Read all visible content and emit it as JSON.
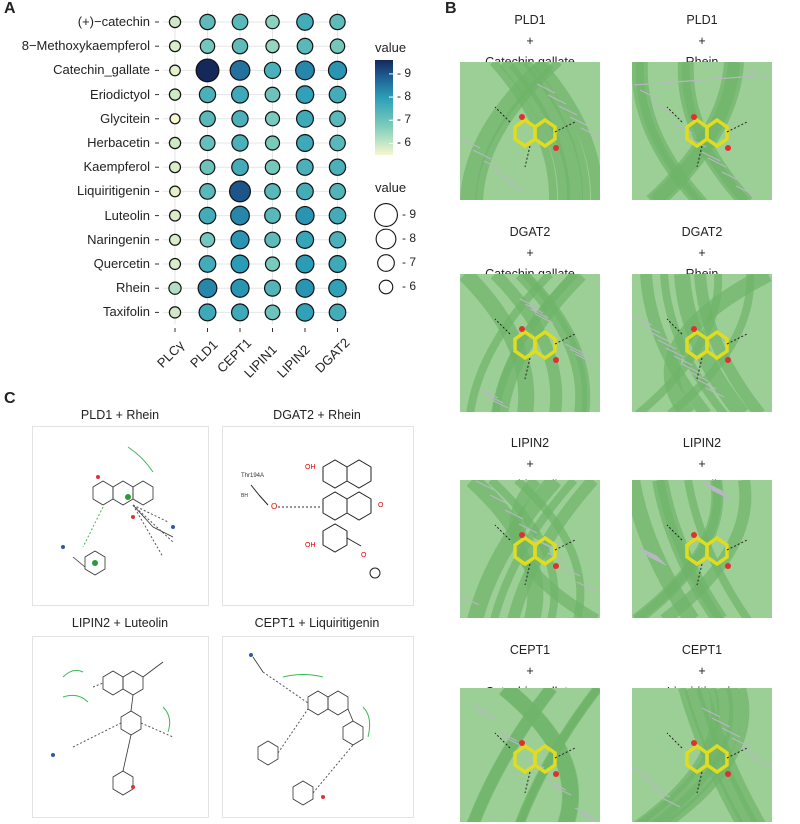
{
  "panels": {
    "a": "A",
    "b": "B",
    "c": "C"
  },
  "chart_data": {
    "type": "scatter",
    "subtype": "dot-matrix",
    "compounds": [
      "(+)−catechin",
      "8−Methoxykaempferol",
      "Catechin_gallate",
      "Eriodictyol",
      "Glycitein",
      "Herbacetin",
      "Kaempferol",
      "Liquiritigenin",
      "Luteolin",
      "Naringenin",
      "Quercetin",
      "Rhein",
      "Taxifolin"
    ],
    "targets": [
      "PLCγ",
      "PLD1",
      "CEPT1",
      "LIPIN1",
      "LIPIN2",
      "DGAT2"
    ],
    "values": [
      [
        5.9,
        7.2,
        7.3,
        6.6,
        7.6,
        7.2
      ],
      [
        5.8,
        6.9,
        7.2,
        6.5,
        7.3,
        6.9
      ],
      [
        5.7,
        9.6,
        8.6,
        7.5,
        8.3,
        8.1
      ],
      [
        5.9,
        7.5,
        7.7,
        7.0,
        7.9,
        7.6
      ],
      [
        5.5,
        7.3,
        7.5,
        6.8,
        7.7,
        7.3
      ],
      [
        5.9,
        7.1,
        7.5,
        6.8,
        7.7,
        7.3
      ],
      [
        5.8,
        7.0,
        7.6,
        6.9,
        7.5,
        7.5
      ],
      [
        5.7,
        7.3,
        9.0,
        7.3,
        7.6,
        7.4
      ],
      [
        5.8,
        7.6,
        8.3,
        7.3,
        8.1,
        7.6
      ],
      [
        5.8,
        6.9,
        8.1,
        7.2,
        7.8,
        7.5
      ],
      [
        5.8,
        7.6,
        8.0,
        6.8,
        8.0,
        7.7
      ],
      [
        6.2,
        8.3,
        8.1,
        7.4,
        8.1,
        7.9
      ],
      [
        5.9,
        7.7,
        7.7,
        7.0,
        7.9,
        7.6
      ]
    ],
    "color_legend": {
      "title": "value",
      "ticks": [
        "9",
        "8",
        "7",
        "6"
      ],
      "tick_values": [
        9,
        8,
        7,
        6
      ],
      "range": [
        5.5,
        9.6
      ]
    },
    "size_legend": {
      "title": "value",
      "ticks": [
        "9",
        "8",
        "7",
        "6"
      ],
      "tick_values": [
        9,
        8,
        7,
        6
      ]
    }
  },
  "docking_panels": [
    {
      "row": 0,
      "col": 0,
      "lines": [
        "PLD1",
        "+",
        "Catechin gallate"
      ]
    },
    {
      "row": 0,
      "col": 1,
      "lines": [
        "PLD1",
        "+",
        "Rhein"
      ]
    },
    {
      "row": 1,
      "col": 0,
      "lines": [
        "DGAT2",
        "+",
        "Catechin gallate"
      ]
    },
    {
      "row": 1,
      "col": 1,
      "lines": [
        "DGAT2",
        "+",
        "Rhein"
      ]
    },
    {
      "row": 2,
      "col": 0,
      "lines": [
        "LIPIN2",
        "+",
        "Catechin gallate"
      ]
    },
    {
      "row": 2,
      "col": 1,
      "lines": [
        "LIPIN2",
        "+",
        "Luteolin"
      ]
    },
    {
      "row": 3,
      "col": 0,
      "lines": [
        "CEPT1",
        "+",
        "Catechin gallate"
      ]
    },
    {
      "row": 3,
      "col": 1,
      "lines": [
        "CEPT1",
        "+",
        "Liquiritigenin"
      ]
    }
  ],
  "interaction_panels": [
    {
      "title": "PLD1 + Rhein"
    },
    {
      "title": "DGAT2 + Rhein",
      "labels": {
        "residue": "Thr194A",
        "chain": "BH"
      }
    },
    {
      "title": "LIPIN2 + Luteolin"
    },
    {
      "title": "CEPT1 + Liquiritigenin"
    }
  ]
}
